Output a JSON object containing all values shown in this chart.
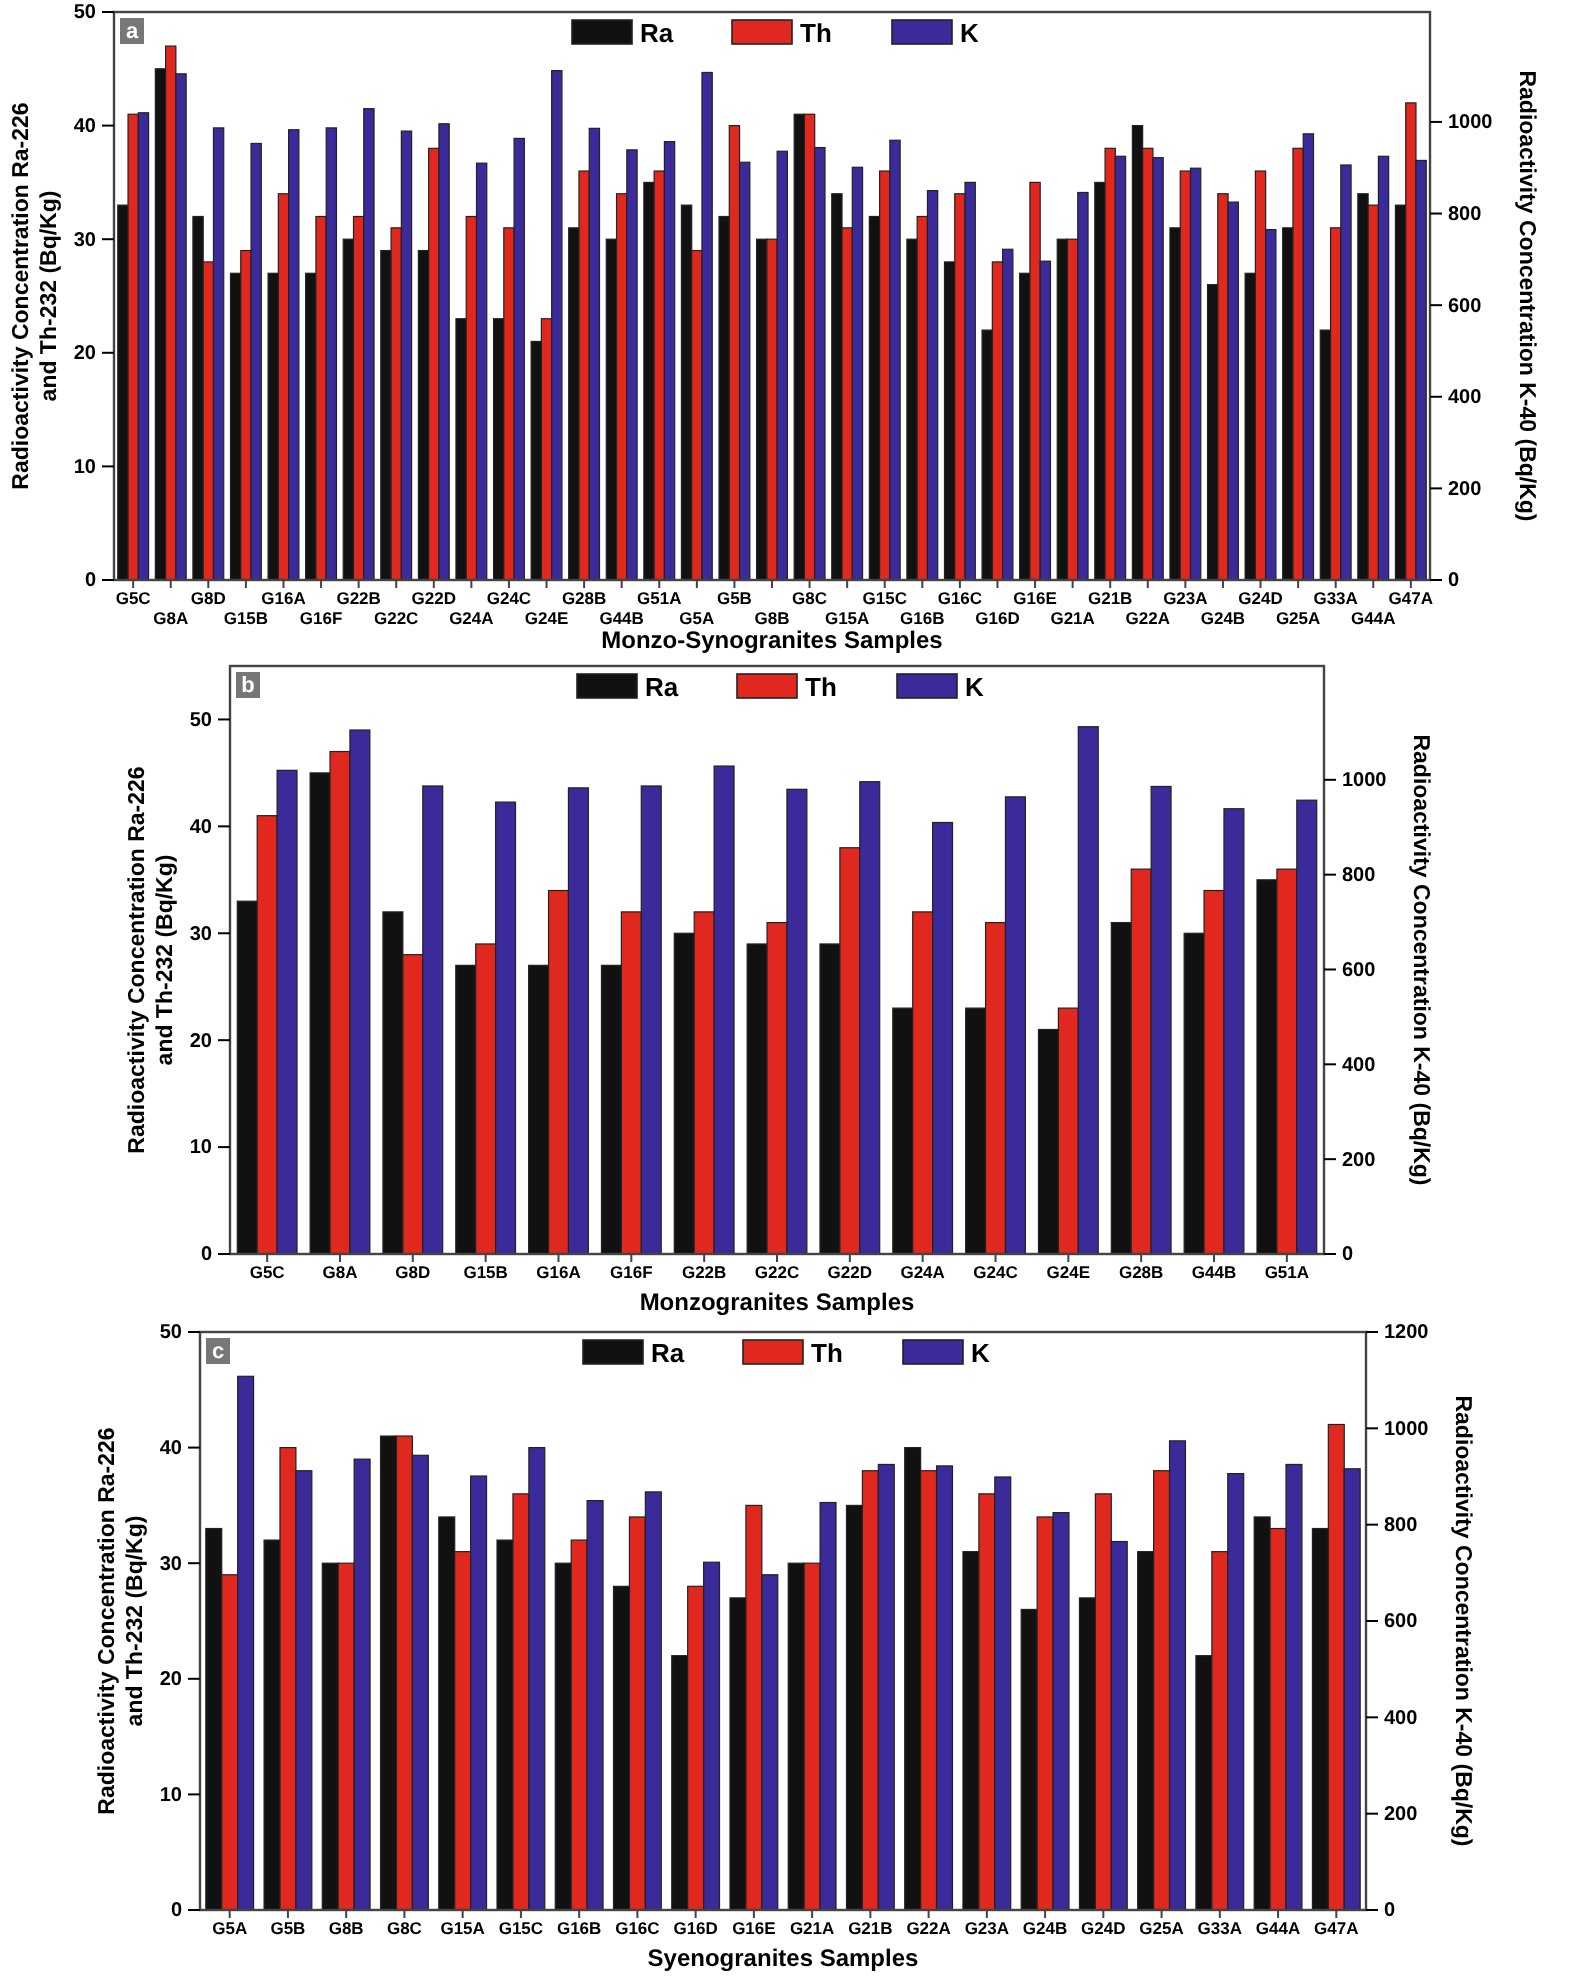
{
  "chart_data": [
    {
      "type": "bar",
      "annotations": [
        "a"
      ],
      "xlabel": "Monzo-Synogranites Samples",
      "ylabel": "Radioactivity Concentration Ra-226\nand Th-232 (Bq/Kg)",
      "y2label": "Radioactivity Concentration K-40 (Bq/Kg)",
      "legend": "top",
      "categories": [
        "G5C",
        "G8A",
        "G8D",
        "G15B",
        "G16A",
        "G16F",
        "G22B",
        "G22C",
        "G22D",
        "G24A",
        "G24C",
        "G24E",
        "G28B",
        "G44B",
        "G51A",
        "G5A",
        "G5B",
        "G8B",
        "G8C",
        "G15A",
        "G15C",
        "G16B",
        "G16C",
        "G16D",
        "G16E",
        "G21A",
        "G21B",
        "G22A",
        "G23A",
        "G24B",
        "G24D",
        "G25A",
        "G33A",
        "G44A",
        "G47A"
      ],
      "ylim": [
        0,
        50
      ],
      "yticks": [
        0,
        10,
        20,
        30,
        40,
        50
      ],
      "y2lim": [
        0,
        1240
      ],
      "y2ticks": [
        0,
        200,
        400,
        600,
        800,
        1000
      ],
      "series": [
        {
          "name": "Ra",
          "color": "#111111",
          "values": [
            33,
            45,
            32,
            27,
            27,
            27,
            30,
            29,
            29,
            23,
            23,
            21,
            31,
            30,
            35,
            33,
            32,
            30,
            41,
            34,
            32,
            30,
            28,
            22,
            27,
            30,
            35,
            40,
            31,
            26,
            27,
            31,
            22,
            34,
            33
          ]
        },
        {
          "name": "Th",
          "color": "#e0281e",
          "values": [
            41,
            47,
            28,
            29,
            34,
            32,
            32,
            31,
            38,
            32,
            31,
            23,
            36,
            34,
            36,
            29,
            40,
            30,
            41,
            31,
            36,
            32,
            34,
            28,
            35,
            30,
            38,
            38,
            36,
            34,
            36,
            38,
            31,
            33,
            42
          ]
        },
        {
          "name": "K",
          "color": "#3a2a9a",
          "axis": "y2",
          "values": [
            1020,
            1105,
            987,
            953,
            983,
            987,
            1029,
            980,
            996,
            910,
            964,
            1112,
            986,
            939,
            957,
            1108,
            912,
            936,
            944,
            901,
            960,
            850,
            868,
            722,
            696,
            846,
            925,
            922,
            899,
            825,
            765,
            974,
            906,
            925,
            916
          ]
        }
      ]
    },
    {
      "type": "bar",
      "annotations": [
        "b"
      ],
      "xlabel": "Monzogranites Samples",
      "ylabel": "Radioactivity Concentration Ra-226\nand Th-232 (Bq/Kg)",
      "y2label": "Radioactivity Concentration K-40 (Bq/Kg)",
      "legend": "top",
      "categories": [
        "G5C",
        "G8A",
        "G8D",
        "G15B",
        "G16A",
        "G16F",
        "G22B",
        "G22C",
        "G22D",
        "G24A",
        "G24C",
        "G24E",
        "G28B",
        "G44B",
        "G51A"
      ],
      "ylim": [
        0,
        55
      ],
      "yticks": [
        0,
        10,
        20,
        30,
        40,
        50
      ],
      "y2lim": [
        0,
        1240
      ],
      "y2ticks": [
        0,
        200,
        400,
        600,
        800,
        1000
      ],
      "series": [
        {
          "name": "Ra",
          "color": "#111111",
          "values": [
            33,
            45,
            32,
            27,
            27,
            27,
            30,
            29,
            29,
            23,
            23,
            21,
            31,
            30,
            35
          ]
        },
        {
          "name": "Th",
          "color": "#e0281e",
          "values": [
            41,
            47,
            28,
            29,
            34,
            32,
            32,
            31,
            38,
            32,
            31,
            23,
            36,
            34,
            36
          ]
        },
        {
          "name": "K",
          "color": "#3a2a9a",
          "axis": "y2",
          "values": [
            1020,
            1105,
            987,
            953,
            983,
            987,
            1029,
            980,
            996,
            910,
            964,
            1112,
            986,
            939,
            957
          ]
        }
      ]
    },
    {
      "type": "bar",
      "annotations": [
        "c"
      ],
      "xlabel": "Syenogranites Samples",
      "ylabel": "Radioactivity Concentration Ra-226\nand Th-232 (Bq/Kg)",
      "y2label": "Radioactivity Concentration K-40 (Bq/Kg)",
      "legend": "top",
      "categories": [
        "G5A",
        "G5B",
        "G8B",
        "G8C",
        "G15A",
        "G15C",
        "G16B",
        "G16C",
        "G16D",
        "G16E",
        "G21A",
        "G21B",
        "G22A",
        "G23A",
        "G24B",
        "G24D",
        "G25A",
        "G33A",
        "G44A",
        "G47A"
      ],
      "ylim": [
        0,
        50
      ],
      "yticks": [
        0,
        10,
        20,
        30,
        40,
        50
      ],
      "y2lim": [
        0,
        1200
      ],
      "y2ticks": [
        0,
        200,
        400,
        600,
        800,
        1000,
        1200
      ],
      "series": [
        {
          "name": "Ra",
          "color": "#111111",
          "values": [
            33,
            32,
            30,
            41,
            34,
            32,
            30,
            28,
            22,
            27,
            30,
            35,
            40,
            31,
            26,
            27,
            31,
            22,
            34,
            33
          ]
        },
        {
          "name": "Th",
          "color": "#e0281e",
          "values": [
            29,
            40,
            30,
            41,
            31,
            36,
            32,
            34,
            28,
            35,
            30,
            38,
            38,
            36,
            34,
            36,
            38,
            31,
            33,
            42
          ]
        },
        {
          "name": "K",
          "color": "#3a2a9a",
          "axis": "y2",
          "values": [
            1108,
            912,
            936,
            944,
            901,
            960,
            850,
            868,
            722,
            696,
            846,
            925,
            922,
            899,
            825,
            765,
            974,
            906,
            925,
            916
          ]
        }
      ]
    }
  ]
}
